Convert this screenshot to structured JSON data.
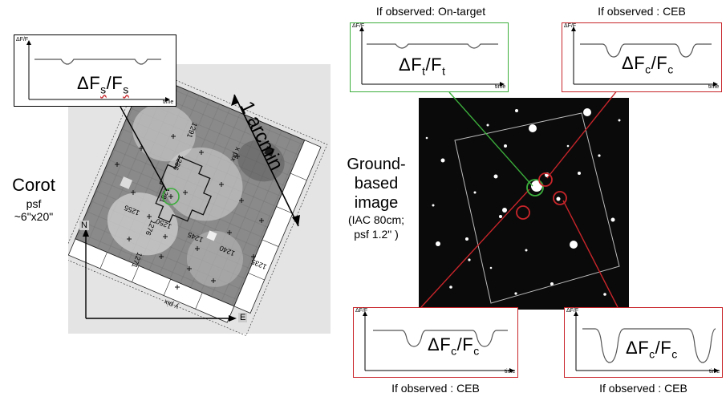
{
  "left": {
    "corot_label": "Corot",
    "corot_psf_label": "psf",
    "corot_psf_size": "~6\"x20\"",
    "arcmin_label": "1 arcmin",
    "compass_north": "N",
    "compass_east": "E",
    "inset": {
      "ylabel": "ΔF/F",
      "xlabel": "time",
      "flux_main": "ΔF",
      "flux_sub1": "s",
      "flux_sep": "/F",
      "flux_sub2": "s"
    },
    "pixel_labels_side": [
      "1291",
      "1286",
      "1281",
      "1276",
      "1271"
    ],
    "pixel_labels_bottom": [
      "1235",
      "1240",
      "1245",
      "1250",
      "1255"
    ],
    "pixel_axis_x": "x pix",
    "pixel_axis_y": "y pix"
  },
  "right": {
    "ground_title_1": "Ground-",
    "ground_title_2": "based",
    "ground_title_3": "image",
    "ground_detail_1": "(IAC 80cm;",
    "ground_detail_2": "psf 1.2\" )",
    "top_left_caption": "If observed: On-target",
    "top_right_caption": "If observed : CEB",
    "bottom_left_caption": "If observed : CEB",
    "bottom_right_caption": "If observed : CEB",
    "target_box": {
      "ylabel": "ΔF/F",
      "xlabel": "time",
      "flux_main": "ΔF",
      "sub1": "t",
      "sep": "/F",
      "sub2": "t"
    },
    "ceb_box_top": {
      "ylabel": "ΔF/F",
      "xlabel": "time",
      "flux_main": "ΔF",
      "sub1": "c",
      "sep": "/F",
      "sub2": "c"
    },
    "ceb_box_bl": {
      "ylabel": "ΔF/F",
      "xlabel": "time",
      "flux_main": "ΔF",
      "sub1": "c",
      "sep": "/F",
      "sub2": "c"
    },
    "ceb_box_br": {
      "ylabel": "ΔF/F",
      "xlabel": "time",
      "flux_main": "ΔF",
      "sub1": "c",
      "sep": "/F",
      "sub2": "c"
    }
  },
  "colors": {
    "target_green": "#3cae3c",
    "ceb_red": "#c8252a",
    "panel_gray": "#e4e4e4",
    "sky_black": "#0a0a0a"
  }
}
